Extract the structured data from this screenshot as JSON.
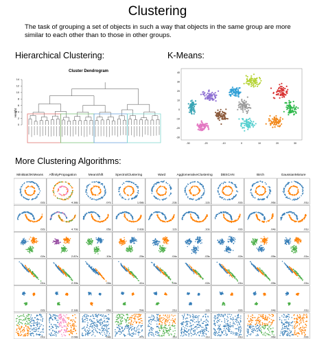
{
  "title": "Clustering",
  "description_line1": "The task of grouping a set of objects in such a way that objects in the same group are more",
  "description_line2": "similar to each other than to those in other groups.",
  "hierarchical_heading": "Hierarchical Clustering:",
  "kmeans_heading": "K-Means:",
  "more_heading": "More Clustering Algorithms:",
  "dendrogram": {
    "title": "Cluster Dendrogram",
    "ylabel": "Height",
    "yticks": [
      "0",
      "2",
      "4",
      "6",
      "8",
      "10",
      "12",
      "14"
    ],
    "colors": [
      "#e0736f",
      "#7cc47a",
      "#6aa4dc",
      "#7fd8d0"
    ]
  },
  "kmeans_plot": {
    "xticks": [
      "-30",
      "-20",
      "-10",
      "0",
      "10",
      "20",
      "30"
    ],
    "yticks": [
      "40",
      "30",
      "20",
      "10",
      "0",
      "-10",
      "-20",
      "-30"
    ],
    "colors": [
      "#b5d334",
      "#d93434",
      "#2f9fd6",
      "#8e6fd3",
      "#9b9b9b",
      "#2eb84a",
      "#f28a1e",
      "#8b5a3c",
      "#e377c2",
      "#58d0d0",
      "#3aa5b5"
    ]
  },
  "algorithms": [
    "MiniBatchKMeans",
    "AffinityPropagation",
    "MeanShift",
    "SpectralClustering",
    "Ward",
    "AgglomerativeClustering",
    "DBSCAN",
    "Birch",
    "GaussianMixture"
  ],
  "times": [
    [
      ".02s",
      "4.38s",
      ".07s",
      "1.68s",
      ".23s",
      ".12s",
      ".02s",
      ".06s",
      ".01s"
    ],
    [
      ".02s",
      "4.79s",
      ".05s",
      "2.83s",
      ".12s",
      ".10s",
      ".02s",
      ".04s",
      ".01s"
    ],
    [
      ".02s",
      "2.87s",
      ".10s",
      ".25s",
      ".04s",
      ".03s",
      ".02s",
      ".05s",
      ".01s"
    ],
    [
      ".01s",
      "2.39s",
      ".06s",
      ".41s",
      ".04s",
      ".02s",
      ".01s",
      ".05s",
      ".01s"
    ],
    [
      ".02s",
      "2.18s",
      ".05s",
      ".59s",
      ".21s",
      ".12s",
      ".02s",
      ".04s",
      ".01s"
    ],
    [
      ".01s",
      "2.08s",
      ".08s",
      ".47s",
      ".11s",
      ".11s",
      ".01s",
      ".06s",
      ".02s"
    ]
  ],
  "palette": {
    "blue": "#377eb8",
    "orange": "#ff7f00",
    "green": "#4daf4a",
    "pink": "#f781bf",
    "purple": "#984ea3"
  }
}
